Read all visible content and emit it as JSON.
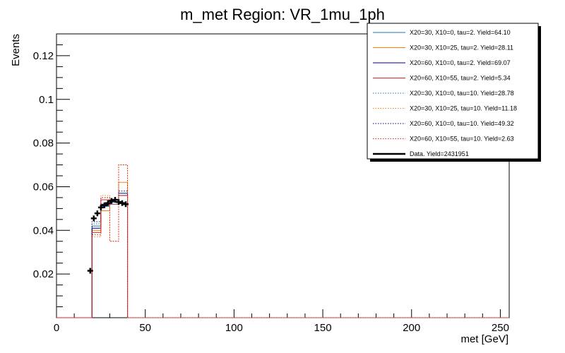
{
  "chart_data": {
    "type": "line",
    "title": "m_met Region: VR_1mu_1ph",
    "xlabel": "met [GeV]",
    "ylabel": "Events",
    "xlim": [
      0,
      255
    ],
    "ylim": [
      0,
      0.13
    ],
    "xticks": [
      0,
      50,
      100,
      150,
      200,
      250
    ],
    "xtick_labels": [
      "0",
      "50",
      "100",
      "150",
      "200",
      "250"
    ],
    "yticks": [
      0.02,
      0.04,
      0.06,
      0.08,
      0.1,
      0.12
    ],
    "ytick_labels": [
      "0.02",
      "0.04",
      "0.06",
      "0.08",
      "0.1",
      "0.12"
    ],
    "grid": false,
    "legend_position": "top-right",
    "bin_edges": [
      20,
      25,
      30,
      35,
      40
    ],
    "series": [
      {
        "name": "X20=30, X10=0, tau=2. Yield=64.10",
        "color": "#1f77b4",
        "style": "solid",
        "values": [
          0.042,
          0.051,
          0.053,
          0.056
        ]
      },
      {
        "name": "X20=30, X10=25, tau=2. Yield=28.11",
        "color": "#ff7f0e",
        "style": "solid",
        "values": [
          0.04,
          0.049,
          0.054,
          0.062
        ]
      },
      {
        "name": "X20=60, X10=0, tau=2. Yield=69.07",
        "color": "#000066",
        "style": "solid",
        "values": [
          0.041,
          0.052,
          0.054,
          0.057
        ]
      },
      {
        "name": "X20=60, X10=55, tau=2. Yield=5.34",
        "color": "#d62728",
        "style": "solid",
        "values": [
          0.039,
          0.054,
          0.052,
          0.056
        ]
      },
      {
        "name": "X20=30, X10=0, tau=10. Yield=28.78",
        "color": "#1f77b4",
        "style": "dotted",
        "values": [
          0.043,
          0.051,
          0.052,
          0.057
        ]
      },
      {
        "name": "X20=30, X10=25, tau=10. Yield=11.18",
        "color": "#ff7f0e",
        "style": "dotted",
        "values": [
          0.037,
          0.056,
          0.035,
          0.07
        ]
      },
      {
        "name": "X20=60, X10=0, tau=10. Yield=49.32",
        "color": "#000066",
        "style": "dotted",
        "values": [
          0.044,
          0.055,
          0.053,
          0.058
        ]
      },
      {
        "name": "X20=60, X10=55, tau=10. Yield=2.63",
        "color": "#d62728",
        "style": "dotted",
        "values": [
          0.038,
          0.055,
          0.035,
          0.07
        ]
      }
    ],
    "data_series": {
      "name": "Data. Yield=2431951",
      "color": "#000000",
      "x": [
        19,
        21,
        23,
        25,
        27,
        29,
        31,
        33,
        35,
        37,
        39
      ],
      "y": [
        0.0215,
        0.0455,
        0.0478,
        0.0505,
        0.0515,
        0.0525,
        0.0535,
        0.054,
        0.053,
        0.0525,
        0.052
      ]
    }
  }
}
